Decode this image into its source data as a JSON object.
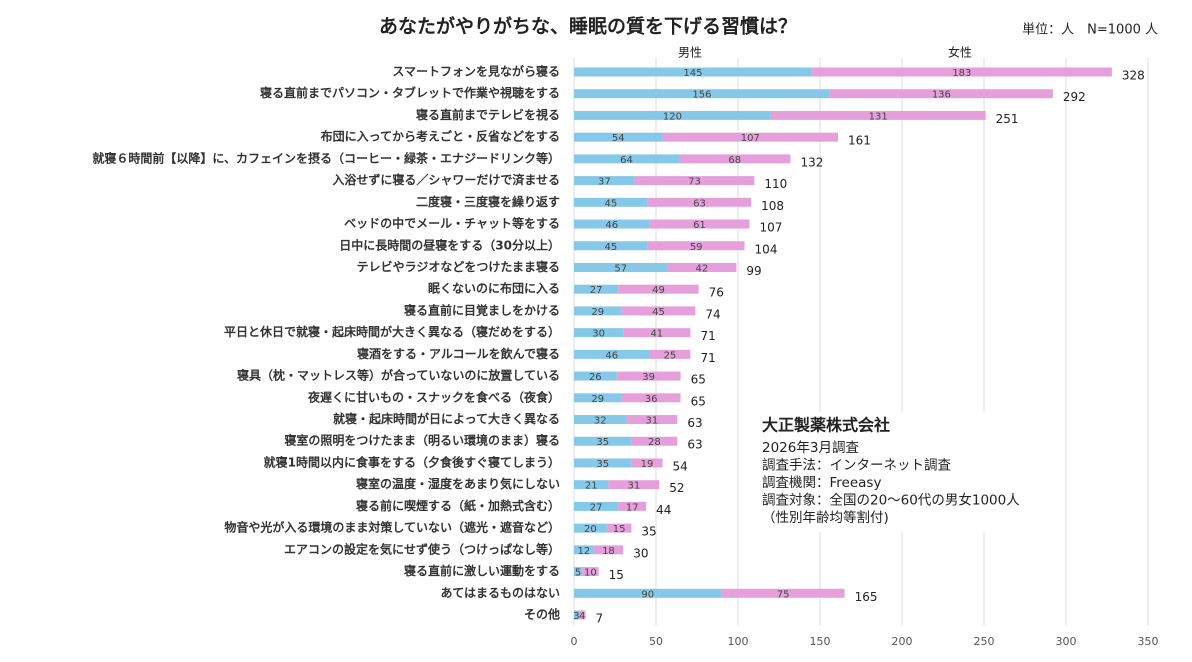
{
  "chart_data": {
    "type": "stacked-barh",
    "title": "あなたがやりがちな、睡眠の質を下げる習慣は？",
    "subtitle": "単位：人　N=1000 人",
    "categories": [
      "スマートフォンを見ながら寝る",
      "寝る直前までパソコン・タブレットで作業や視聴をする",
      "寝る直前までテレビを視る",
      "布団に入ってから考えごと・反省などをする",
      "就寝６時間前【以降】に、カフェインを摂る（コーヒー・緑茶・エナジードリンク等）",
      "入浴せずに寝る／シャワーだけで済ませる",
      "二度寝・三度寝を繰り返す",
      "ベッドの中でメール・チャット等をする",
      "日中に長時間の昼寝をする（30分以上）",
      "テレビやラジオなどをつけたまま寝る",
      "眠くないのに布団に入る",
      "寝る直前に目覚ましをかける",
      "平日と休日で就寝・起床時間が大きく異なる（寝だめをする）",
      "寝酒をする・アルコールを飲んで寝る",
      "寝具（枕・マットレス等）が合っていないのに放置している",
      "夜遅くに甘いもの・スナックを食べる（夜食）",
      "就寝・起床時間が日によって大きく異なる",
      "寝室の照明をつけたまま（明るい環境のまま）寝る",
      "就寝1時間以内に食事をする（夕食後すぐ寝てしまう）",
      "寝室の温度・湿度をあまり気にしない",
      "寝る前に喫煙する（紙・加熱式含む）",
      "物音や光が入る環境のまま対策していない（遮光・遮音など）",
      "エアコンの設定を気にせず使う（つけっぱなし等）",
      "寝る直前に激しい運動をする",
      "あてはまるものはない",
      "その他"
    ],
    "series": [
      {
        "name": "男性",
        "color": "#86c8e8",
        "values": [
          145,
          156,
          120,
          54,
          64,
          37,
          45,
          46,
          45,
          57,
          27,
          29,
          30,
          46,
          26,
          29,
          32,
          35,
          35,
          21,
          27,
          20,
          12,
          5,
          90,
          3
        ]
      },
      {
        "name": "女性",
        "color": "#e5a0dc",
        "values": [
          183,
          136,
          131,
          107,
          68,
          73,
          63,
          61,
          59,
          42,
          49,
          45,
          41,
          25,
          39,
          36,
          31,
          28,
          19,
          31,
          17,
          15,
          18,
          10,
          75,
          4
        ]
      }
    ],
    "totals": [
      328,
      292,
      251,
      161,
      132,
      110,
      108,
      107,
      104,
      99,
      76,
      74,
      71,
      71,
      65,
      65,
      63,
      63,
      54,
      52,
      44,
      35,
      30,
      15,
      165,
      7
    ],
    "xlim": [
      0,
      350
    ],
    "xticks": [
      0,
      50,
      100,
      150,
      200,
      250,
      300,
      350
    ],
    "grid": true,
    "annotation": {
      "title": "大正製薬株式会社",
      "lines": [
        "2026年3月調査",
        "調査手法：インターネット調査",
        "調査機関：Freeasy",
        "調査対象：全国の20～60代の男女1000人",
        "（性別年齢均等割付)"
      ]
    }
  }
}
